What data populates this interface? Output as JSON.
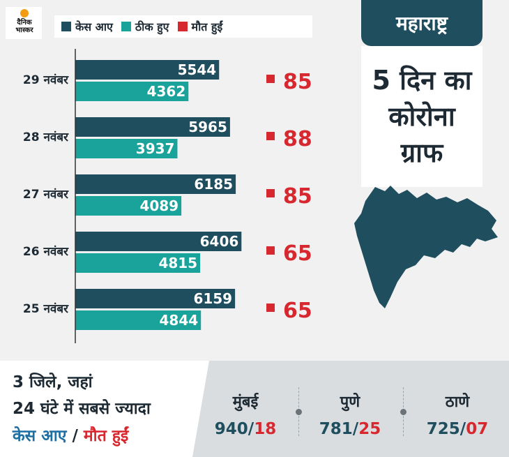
{
  "logo": {
    "line1": "दैनिक",
    "line2": "भास्कर"
  },
  "legend": [
    {
      "label": "केस आए",
      "color": "#1f4e5e"
    },
    {
      "label": "ठीक हुए",
      "color": "#1aa39b"
    },
    {
      "label": "मौत हुईं",
      "color": "#d7282f"
    }
  ],
  "panel": {
    "state": "महाराष्ट्र",
    "lines": [
      "5 दिन का",
      "कोरोना",
      "ग्राफ"
    ]
  },
  "chart_data": {
    "type": "bar",
    "categories": [
      "29 नवंबर",
      "28 नवंबर",
      "27 नवंबर",
      "26 नवंबर",
      "25 नवंबर"
    ],
    "series": [
      {
        "name": "केस आए",
        "color": "#1f4e5e",
        "values": [
          5544,
          5965,
          6185,
          6406,
          6159
        ]
      },
      {
        "name": "ठीक हुए",
        "color": "#1aa39b",
        "values": [
          4362,
          3937,
          4089,
          4815,
          4844
        ]
      },
      {
        "name": "मौत हुईं",
        "color": "#d7282f",
        "values": [
          85,
          88,
          85,
          65,
          65
        ]
      }
    ],
    "orientation": "horizontal"
  },
  "bottom": {
    "line1": "3 जिले, जहां",
    "line2": "24 घंटे में सबसे ज्यादा",
    "cases_label": "केस आए",
    "separator": " / ",
    "deaths_label": "मौत हुईं",
    "cities": [
      {
        "name": "मुंबई",
        "cases": "940",
        "deaths": "18"
      },
      {
        "name": "पुणे",
        "cases": "781",
        "deaths": "25"
      },
      {
        "name": "ठाणे",
        "cases": "725",
        "deaths": "07"
      }
    ]
  }
}
